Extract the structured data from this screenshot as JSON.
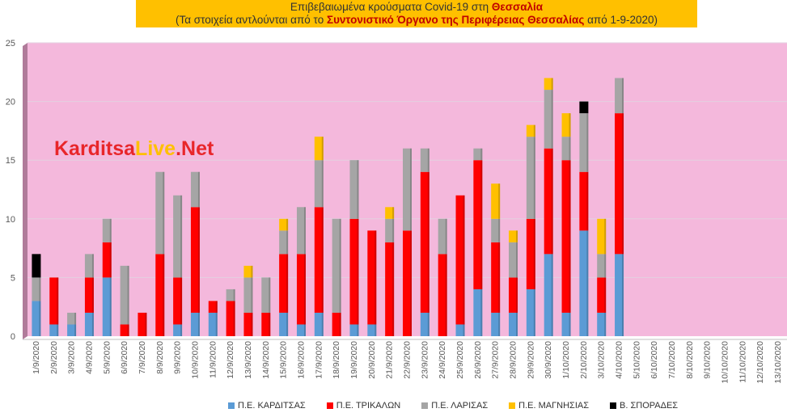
{
  "title": {
    "line1_prefix": "Επιβεβαιωμένα κρούσματα Covid-19 στη ",
    "line1_bold": "Θεσσαλία",
    "line2_prefix": "(Τα στοιχεία αντλούνται από το ",
    "line2_bold": "Συντονιστικό Όργανο της Περιφέρειας Θεσσαλίας",
    "line2_suffix": " από 1-9-2020)"
  },
  "watermark": {
    "part1": "Karditsa",
    "part2": "Live",
    "part3": ".Net",
    "color1": "#e8262a",
    "color2": "#ffc000",
    "color3": "#e8262a"
  },
  "chart_data": {
    "type": "bar",
    "stacked": true,
    "categories": [
      "1/9/2020",
      "2/9/2020",
      "3/9/2020",
      "4/9/2020",
      "5/9/2020",
      "6/9/2020",
      "7/9/2020",
      "8/9/2020",
      "9/9/2020",
      "10/9/2020",
      "11/9/2020",
      "12/9/2020",
      "13/9/2020",
      "14/9/2020",
      "15/9/2020",
      "16/9/2020",
      "17/9/2020",
      "18/9/2020",
      "19/9/2020",
      "20/9/2020",
      "21/9/2020",
      "22/9/2020",
      "23/9/2020",
      "24/9/2020",
      "25/9/2020",
      "26/9/2020",
      "27/9/2020",
      "28/9/2020",
      "29/9/2020",
      "30/9/2020",
      "1/10/2020",
      "2/10/2020",
      "3/10/2020",
      "4/10/2020",
      "5/10/2020",
      "6/10/2020",
      "7/10/2020",
      "8/10/2020",
      "9/10/2020",
      "10/10/2020",
      "11/10/2020",
      "12/10/2020",
      "13/10/2020"
    ],
    "series": [
      {
        "name": "Π.Ε. ΚΑΡΔΙΤΣΑΣ",
        "color": "#5b9bd5",
        "values": [
          3,
          1,
          1,
          2,
          5,
          0,
          0,
          0,
          1,
          2,
          2,
          0,
          0,
          0,
          2,
          1,
          2,
          0,
          1,
          1,
          0,
          0,
          2,
          0,
          1,
          4,
          2,
          2,
          4,
          7,
          2,
          9,
          2,
          7,
          0,
          0,
          0,
          0,
          0,
          0,
          0,
          0,
          0
        ]
      },
      {
        "name": "Π.Ε. ΤΡΙΚΑΛΩΝ",
        "color": "#ff0000",
        "values": [
          0,
          4,
          0,
          3,
          3,
          1,
          2,
          7,
          4,
          9,
          1,
          3,
          2,
          2,
          5,
          6,
          9,
          2,
          9,
          8,
          8,
          9,
          12,
          7,
          11,
          11,
          6,
          3,
          6,
          9,
          13,
          5,
          3,
          12,
          0,
          0,
          0,
          0,
          0,
          0,
          0,
          0,
          0
        ]
      },
      {
        "name": "Π.Ε. ΛΑΡΙΣΑΣ",
        "color": "#a5a5a5",
        "values": [
          2,
          0,
          1,
          2,
          2,
          5,
          0,
          7,
          7,
          3,
          0,
          1,
          3,
          3,
          2,
          4,
          4,
          8,
          5,
          0,
          2,
          7,
          2,
          3,
          0,
          1,
          2,
          3,
          7,
          5,
          2,
          5,
          2,
          3,
          0,
          0,
          0,
          0,
          0,
          0,
          0,
          0,
          0
        ]
      },
      {
        "name": "Π.Ε. ΜΑΓΝΗΣΙΑΣ",
        "color": "#ffc000",
        "values": [
          0,
          0,
          0,
          0,
          0,
          0,
          0,
          0,
          0,
          0,
          0,
          0,
          1,
          0,
          1,
          0,
          2,
          0,
          0,
          0,
          1,
          0,
          0,
          0,
          0,
          0,
          3,
          1,
          1,
          1,
          2,
          0,
          3,
          0,
          0,
          0,
          0,
          0,
          0,
          0,
          0,
          0,
          0
        ]
      },
      {
        "name": "Β. ΣΠΟΡΑΔΕΣ",
        "color": "#000000",
        "values": [
          2,
          0,
          0,
          0,
          0,
          0,
          0,
          0,
          0,
          0,
          0,
          0,
          0,
          0,
          0,
          0,
          0,
          0,
          0,
          0,
          0,
          0,
          0,
          0,
          0,
          0,
          0,
          0,
          0,
          0,
          0,
          1,
          0,
          0,
          0,
          0,
          0,
          0,
          0,
          0,
          0,
          0,
          0
        ]
      }
    ],
    "ylim": [
      0,
      25
    ],
    "yticks": [
      0,
      5,
      10,
      15,
      20,
      25
    ],
    "grid": true,
    "legend": "bottom",
    "plot_background": "#f4b8dc"
  }
}
